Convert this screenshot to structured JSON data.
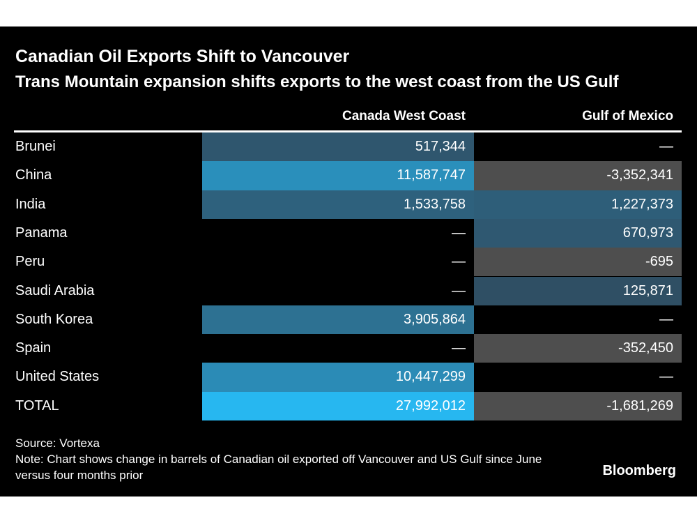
{
  "chart_data": {
    "type": "table",
    "title": "Canadian Oil Exports Shift to Vancouver",
    "subtitle": "Trans Mountain expansion shifts exports to the west coast from the US Gulf",
    "columns": [
      "Canada West Coast",
      "Gulf of Mexico"
    ],
    "rows": [
      {
        "label": "Brunei",
        "values": [
          517344,
          null
        ],
        "display": [
          "517,344",
          "—"
        ]
      },
      {
        "label": "China",
        "values": [
          11587747,
          -3352341
        ],
        "display": [
          "11,587,747",
          "-3,352,341"
        ]
      },
      {
        "label": "India",
        "values": [
          1533758,
          1227373
        ],
        "display": [
          "1,533,758",
          "1,227,373"
        ]
      },
      {
        "label": "Panama",
        "values": [
          null,
          670973
        ],
        "display": [
          "—",
          "670,973"
        ]
      },
      {
        "label": "Peru",
        "values": [
          null,
          -695
        ],
        "display": [
          "—",
          "-695"
        ]
      },
      {
        "label": "Saudi Arabia",
        "values": [
          null,
          125871
        ],
        "display": [
          "—",
          "125,871"
        ]
      },
      {
        "label": "South Korea",
        "values": [
          3905864,
          null
        ],
        "display": [
          "3,905,864",
          "—"
        ]
      },
      {
        "label": "Spain",
        "values": [
          null,
          -352450
        ],
        "display": [
          "—",
          "-352,450"
        ]
      },
      {
        "label": "United States",
        "values": [
          10447299,
          null
        ],
        "display": [
          "10,447,299",
          "—"
        ]
      },
      {
        "label": "TOTAL",
        "values": [
          27992012,
          -1681269
        ],
        "display": [
          "27,992,012",
          "-1,681,269"
        ]
      }
    ],
    "colors": {
      "background": "#000000",
      "positive_low": "#30475a",
      "positive_high": "#27b7f0",
      "negative": "#4e4e4e",
      "text": "#ffffff"
    }
  },
  "footer": {
    "source": "Source: Vortexa",
    "note": "Note: Chart shows change in barrels of Canadian oil exported off Vancouver and US Gulf since June versus four months prior"
  },
  "brand": "Bloomberg"
}
